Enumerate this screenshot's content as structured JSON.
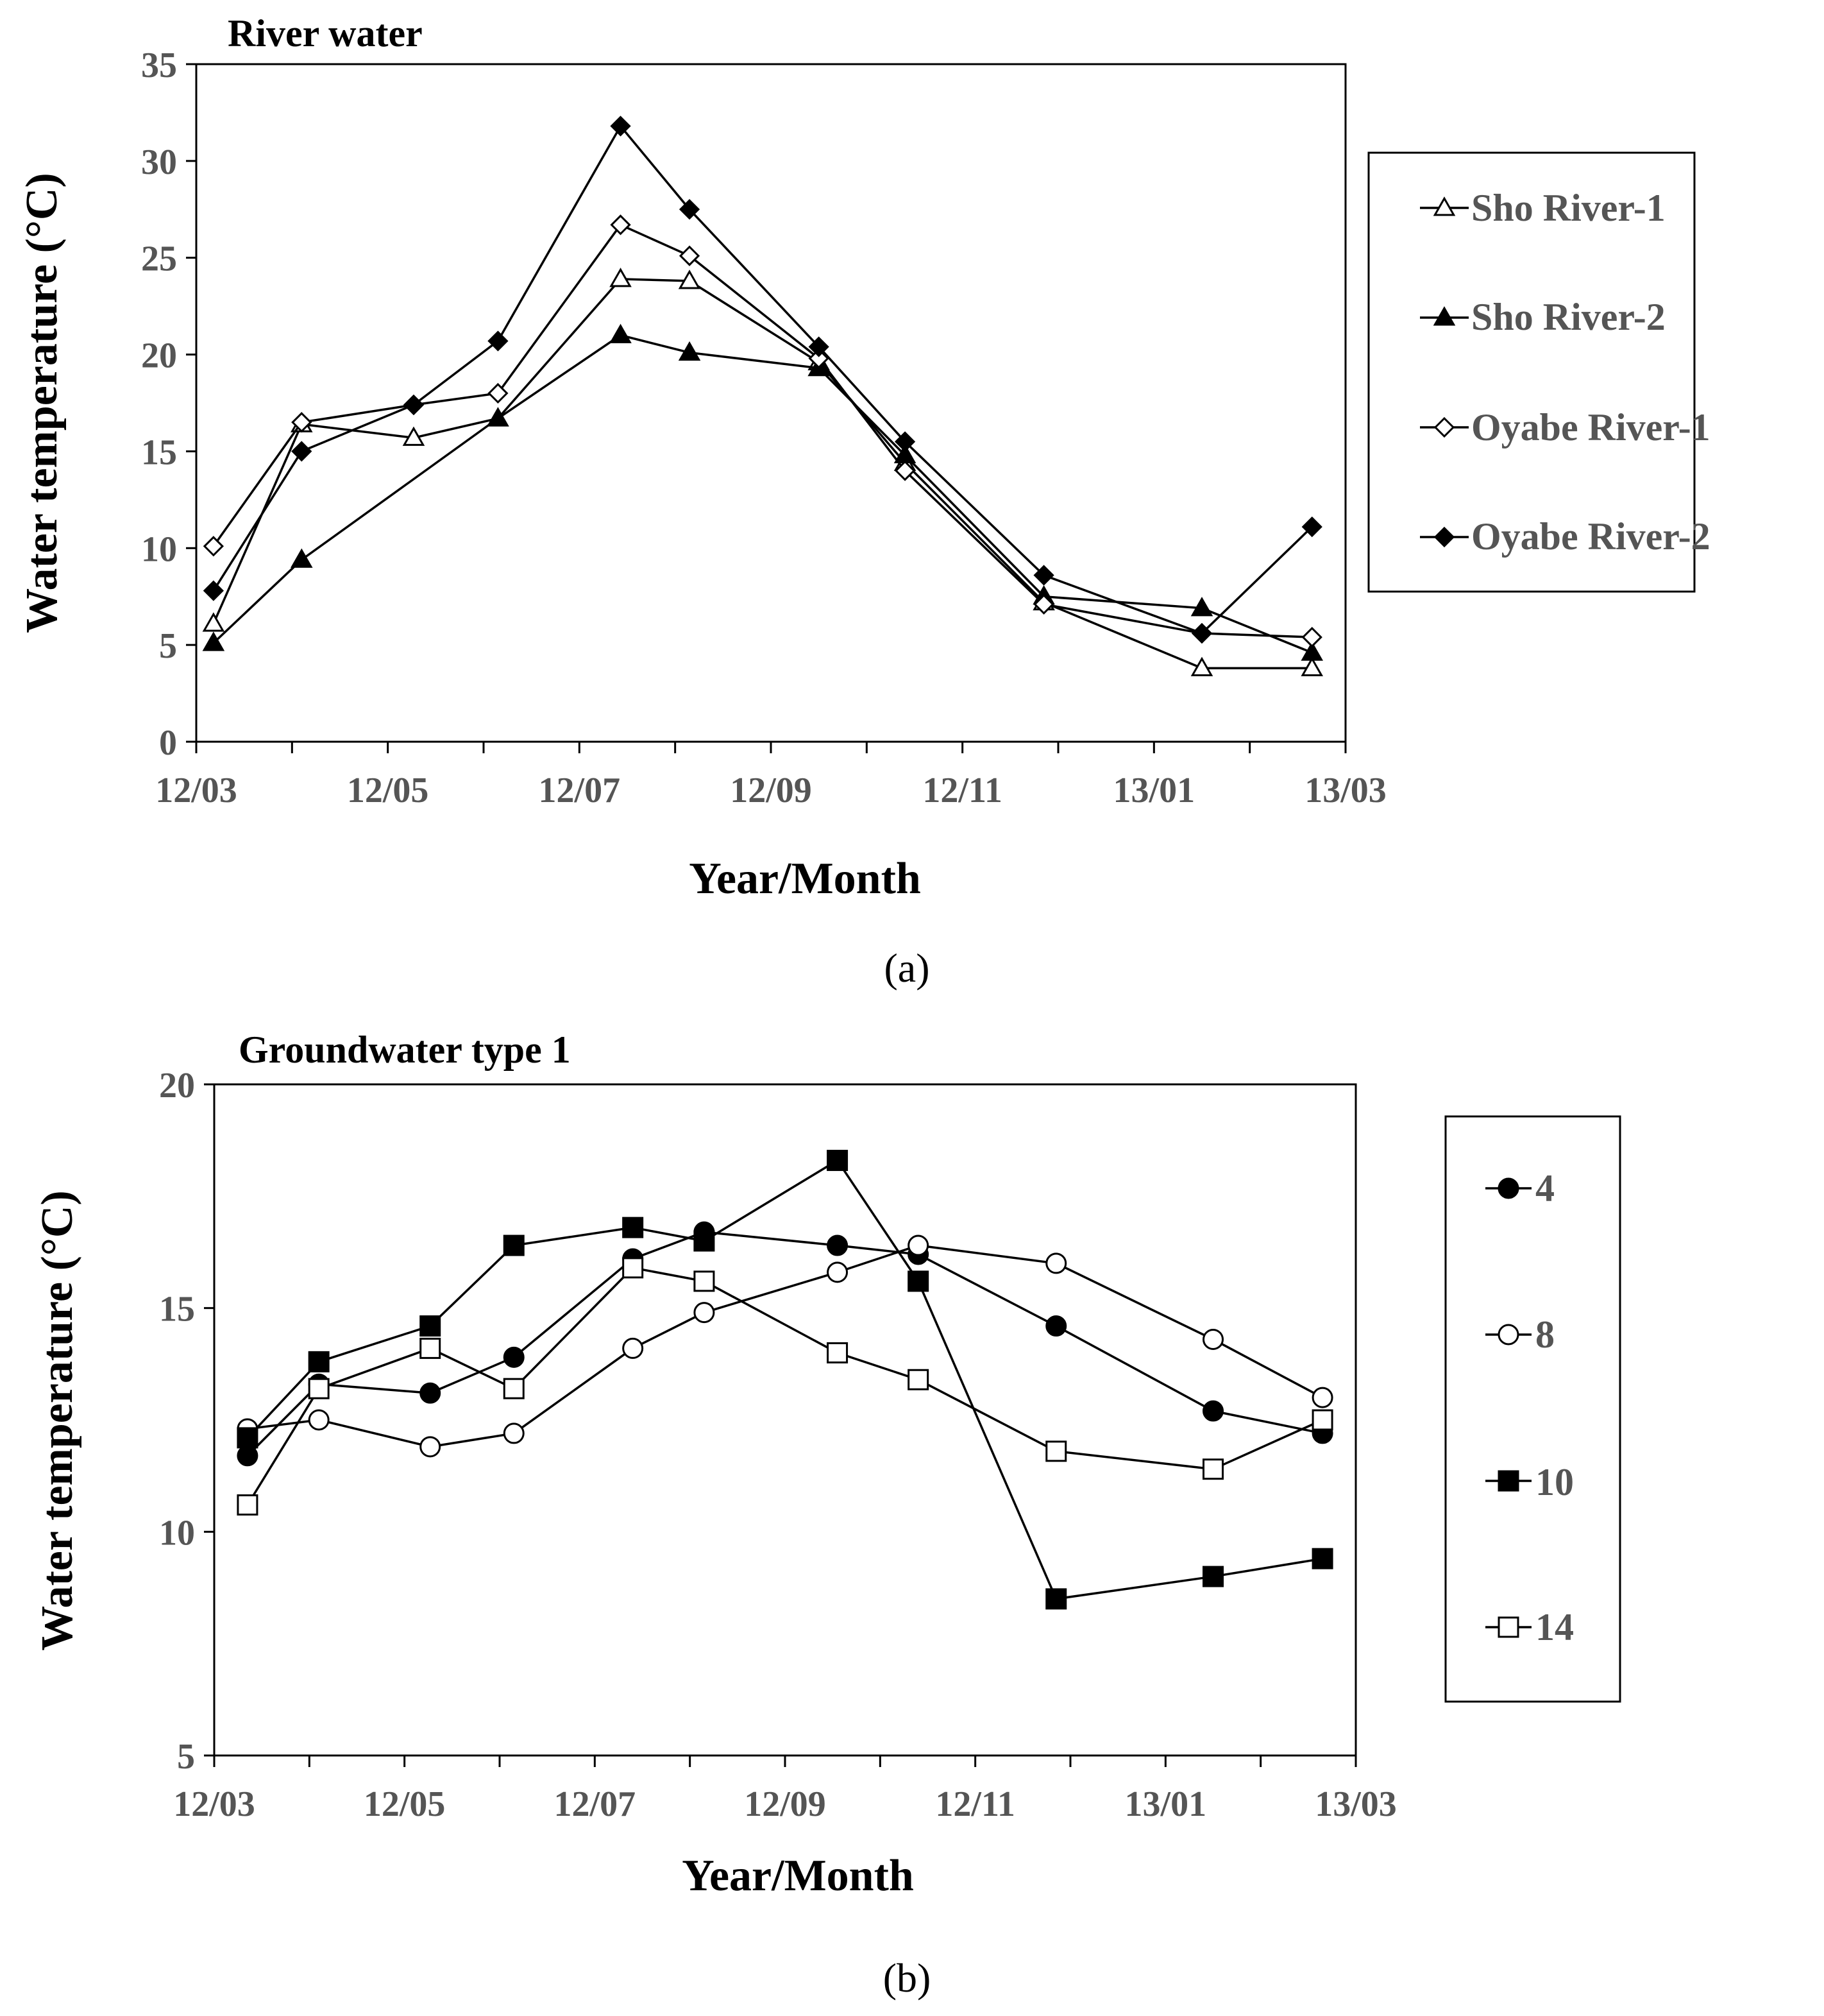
{
  "figure": {
    "label_a": "(a)",
    "label_b": "(b)"
  },
  "chart_data": [
    {
      "type": "line",
      "title": "River water",
      "xlabel": "Year/Month",
      "ylabel": "Water temperature (°C)",
      "ylim": [
        0,
        35
      ],
      "yticks": [
        0,
        5,
        10,
        15,
        20,
        25,
        30,
        35
      ],
      "xlim": [
        0,
        12
      ],
      "xticks": [
        0,
        2,
        4,
        6,
        8,
        10,
        12
      ],
      "xtick_labels": [
        "12/03",
        "12/05",
        "12/07",
        "12/09",
        "12/11",
        "13/01",
        "13/03"
      ],
      "x_minor_ticks": [
        1,
        3,
        5,
        7,
        9,
        11
      ],
      "legend": "right",
      "series": [
        {
          "name": "Sho River-1",
          "marker": "triangle",
          "filled": false,
          "x": [
            0.18,
            1.1,
            2.27,
            3.15,
            4.43,
            5.15,
            6.5,
            7.4,
            8.85,
            10.5,
            11.65
          ],
          "values": [
            6.1,
            16.4,
            15.7,
            16.7,
            23.9,
            23.8,
            19.6,
            14.4,
            7.2,
            3.8,
            3.8
          ]
        },
        {
          "name": "Sho River-2",
          "marker": "triangle",
          "filled": true,
          "x": [
            0.18,
            1.1,
            3.15,
            4.43,
            5.15,
            6.5,
            7.4,
            8.85,
            10.5,
            11.65
          ],
          "values": [
            5.1,
            9.4,
            16.7,
            21.0,
            20.1,
            19.3,
            14.8,
            7.5,
            6.9,
            4.6
          ]
        },
        {
          "name": "Oyabe River-1",
          "marker": "diamond",
          "filled": false,
          "x": [
            0.18,
            1.1,
            2.27,
            3.15,
            4.43,
            5.15,
            6.5,
            7.4,
            8.85,
            10.5,
            11.65
          ],
          "values": [
            10.1,
            16.5,
            17.4,
            18.0,
            26.7,
            25.1,
            19.8,
            14.0,
            7.1,
            5.6,
            5.4
          ]
        },
        {
          "name": "Oyabe River-2",
          "marker": "diamond",
          "filled": true,
          "x": [
            0.18,
            1.1,
            2.27,
            3.15,
            4.43,
            5.15,
            6.5,
            7.4,
            8.85,
            10.5,
            11.65
          ],
          "values": [
            7.8,
            15.0,
            17.4,
            20.7,
            31.8,
            27.5,
            20.4,
            15.5,
            8.6,
            5.6,
            11.1
          ]
        }
      ]
    },
    {
      "type": "line",
      "title": "Groundwater type 1",
      "xlabel": "Year/Month",
      "ylabel": "Water temperature (°C)",
      "ylim": [
        5,
        20
      ],
      "yticks": [
        5,
        10,
        15,
        20
      ],
      "xlim": [
        0,
        12
      ],
      "xticks": [
        0,
        2,
        4,
        6,
        8,
        10,
        12
      ],
      "xtick_labels": [
        "12/03",
        "12/05",
        "12/07",
        "12/09",
        "12/11",
        "13/01",
        "13/03"
      ],
      "x_minor_ticks": [
        1,
        3,
        5,
        7,
        9,
        11
      ],
      "legend": "right",
      "series": [
        {
          "name": "4",
          "marker": "circle",
          "filled": true,
          "x": [
            0.35,
            1.1,
            2.27,
            3.15,
            4.4,
            5.15,
            6.55,
            7.4,
            8.85,
            10.5,
            11.65
          ],
          "values": [
            11.7,
            13.3,
            13.1,
            13.9,
            16.1,
            16.7,
            16.4,
            16.2,
            14.6,
            12.7,
            12.2
          ]
        },
        {
          "name": "8",
          "marker": "circle",
          "filled": false,
          "x": [
            0.35,
            1.1,
            2.27,
            3.15,
            4.4,
            5.15,
            6.55,
            7.4,
            8.85,
            10.5,
            11.65
          ],
          "values": [
            12.3,
            12.5,
            11.9,
            12.2,
            14.1,
            14.9,
            15.8,
            16.4,
            16.0,
            14.3,
            13.0
          ]
        },
        {
          "name": "10",
          "marker": "square",
          "filled": true,
          "x": [
            0.35,
            1.1,
            2.27,
            3.15,
            4.4,
            5.15,
            6.55,
            7.4,
            8.85,
            10.5,
            11.65
          ],
          "values": [
            12.1,
            13.8,
            14.6,
            16.4,
            16.8,
            16.5,
            18.3,
            15.6,
            8.5,
            9.0,
            9.4
          ]
        },
        {
          "name": "14",
          "marker": "square",
          "filled": false,
          "x": [
            0.35,
            1.1,
            2.27,
            3.15,
            4.4,
            5.15,
            6.55,
            7.4,
            8.85,
            10.5,
            11.65
          ],
          "values": [
            10.6,
            13.2,
            14.1,
            13.2,
            15.9,
            15.6,
            14.0,
            13.4,
            11.8,
            11.4,
            12.5
          ]
        }
      ]
    }
  ]
}
